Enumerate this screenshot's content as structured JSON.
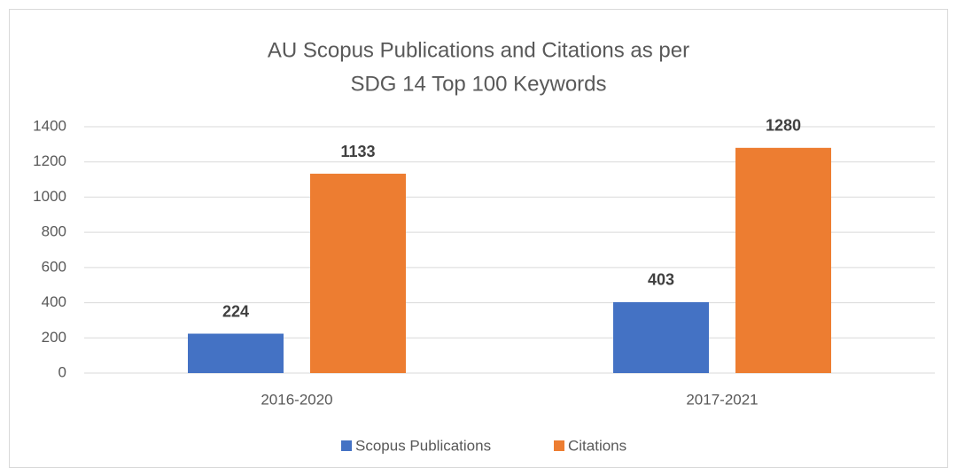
{
  "chart_data": {
    "type": "bar",
    "title": [
      "AU Scopus Publications and Citations as per",
      "SDG 14  Top 100 Keywords"
    ],
    "categories": [
      "2016-2020",
      "2017-2021"
    ],
    "series": [
      {
        "name": "Scopus Publications",
        "color": "#4472c4",
        "values": [
          224,
          403
        ]
      },
      {
        "name": "Citations",
        "color": "#ed7d31",
        "values": [
          1133,
          1280
        ]
      }
    ],
    "ylim": [
      0,
      1400
    ],
    "yticks": [
      0,
      200,
      400,
      600,
      800,
      1000,
      1200,
      1400
    ],
    "grid": true,
    "legend": "bottom"
  }
}
